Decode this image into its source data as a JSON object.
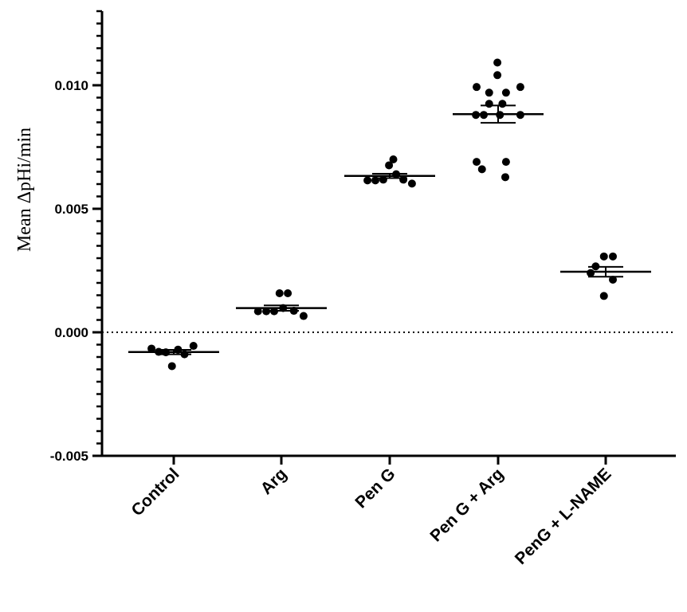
{
  "chart_data": {
    "type": "scatter",
    "subtype": "dot-plot with mean ± SEM",
    "title": "",
    "xlabel": "",
    "ylabel": "Mean ΔpHi/min",
    "ylim": [
      -0.005,
      0.013
    ],
    "yticks": [
      -0.005,
      0.0,
      0.005,
      0.01
    ],
    "ytick_labels": [
      "-0.005",
      "0.000",
      "0.005",
      "0.010"
    ],
    "minor_tick_step": 0.0005,
    "reference_line": {
      "y": 0.0,
      "style": "dotted"
    },
    "grid": false,
    "legend": "none",
    "categories": [
      "Control",
      "Arg",
      "Pen G",
      "Pen G + Arg",
      "PenG + L-NAME"
    ],
    "groups": [
      {
        "name": "Control",
        "mean": -0.0008,
        "sem": 9e-05,
        "points": [
          {
            "offset": -0.62,
            "y": -0.00066
          },
          {
            "offset": -0.42,
            "y": -0.00079
          },
          {
            "offset": -0.22,
            "y": -0.00081
          },
          {
            "offset": -0.05,
            "y": -0.00137
          },
          {
            "offset": 0.12,
            "y": -0.0007
          },
          {
            "offset": 0.3,
            "y": -0.00089
          },
          {
            "offset": 0.55,
            "y": -0.00055
          }
        ]
      },
      {
        "name": "Arg",
        "mean": 0.00098,
        "sem": 0.00011,
        "points": [
          {
            "offset": -0.65,
            "y": 0.00085
          },
          {
            "offset": -0.42,
            "y": 0.00085
          },
          {
            "offset": -0.2,
            "y": 0.00085
          },
          {
            "offset": -0.05,
            "y": 0.00158
          },
          {
            "offset": 0.05,
            "y": 0.00098
          },
          {
            "offset": 0.18,
            "y": 0.00158
          },
          {
            "offset": 0.35,
            "y": 0.00087
          },
          {
            "offset": 0.62,
            "y": 0.00066
          }
        ]
      },
      {
        "name": "Pen G",
        "mean": 0.00633,
        "sem": 9e-05,
        "points": [
          {
            "offset": -0.62,
            "y": 0.00615
          },
          {
            "offset": -0.4,
            "y": 0.00615
          },
          {
            "offset": -0.18,
            "y": 0.00618
          },
          {
            "offset": -0.02,
            "y": 0.00676
          },
          {
            "offset": 0.1,
            "y": 0.007
          },
          {
            "offset": 0.18,
            "y": 0.0064
          },
          {
            "offset": 0.38,
            "y": 0.00618
          },
          {
            "offset": 0.62,
            "y": 0.00602
          }
        ]
      },
      {
        "name": "Pen G + Arg",
        "mean": 0.00883,
        "sem": 0.00035,
        "points": [
          {
            "offset": -0.02,
            "y": 0.01092
          },
          {
            "offset": -0.02,
            "y": 0.01041
          },
          {
            "offset": -0.6,
            "y": 0.00993
          },
          {
            "offset": -0.25,
            "y": 0.0097
          },
          {
            "offset": 0.22,
            "y": 0.0097
          },
          {
            "offset": 0.62,
            "y": 0.00993
          },
          {
            "offset": -0.25,
            "y": 0.00925
          },
          {
            "offset": 0.12,
            "y": 0.00925
          },
          {
            "offset": -0.62,
            "y": 0.0088
          },
          {
            "offset": -0.4,
            "y": 0.0088
          },
          {
            "offset": 0.05,
            "y": 0.0088
          },
          {
            "offset": 0.62,
            "y": 0.0088
          },
          {
            "offset": -0.6,
            "y": 0.0069
          },
          {
            "offset": 0.22,
            "y": 0.0069
          },
          {
            "offset": -0.45,
            "y": 0.0066
          },
          {
            "offset": 0.2,
            "y": 0.00628
          }
        ]
      },
      {
        "name": "PenG + L-NAME",
        "mean": 0.00245,
        "sem": 0.0002,
        "points": [
          {
            "offset": -0.05,
            "y": 0.00307
          },
          {
            "offset": 0.2,
            "y": 0.00307
          },
          {
            "offset": -0.28,
            "y": 0.00267
          },
          {
            "offset": -0.42,
            "y": 0.0024
          },
          {
            "offset": 0.2,
            "y": 0.00213
          },
          {
            "offset": -0.05,
            "y": 0.00147
          }
        ]
      }
    ]
  }
}
